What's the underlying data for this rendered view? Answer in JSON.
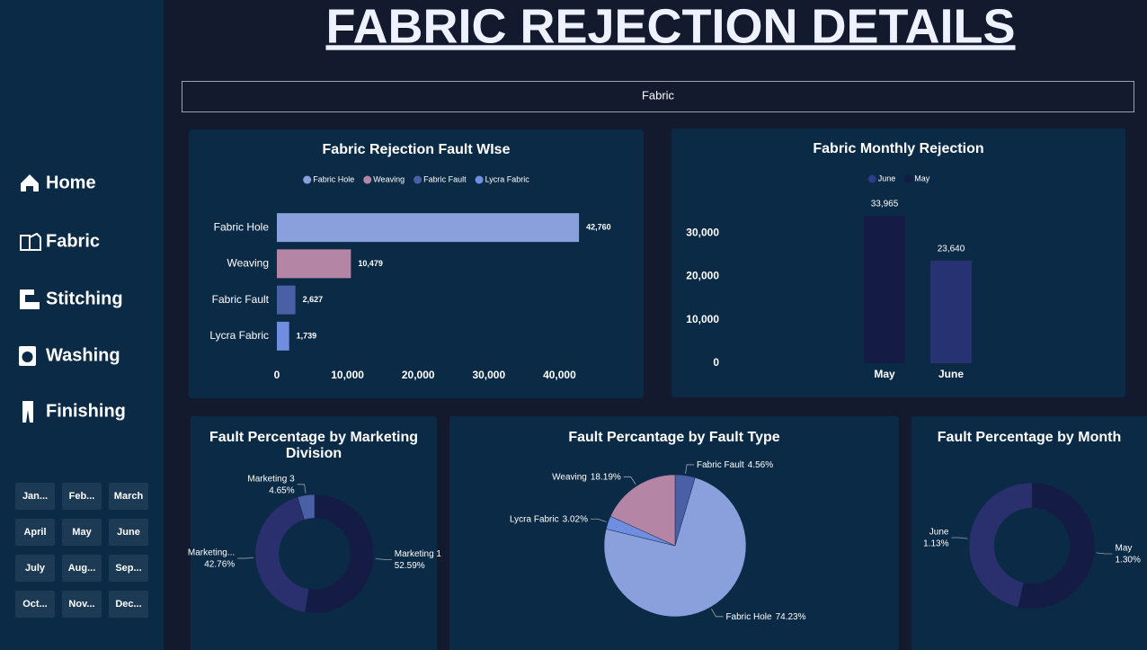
{
  "title": "FABRIC REJECTION DETAILS",
  "filter": "Fabric",
  "nav": [
    "Home",
    "Fabric",
    "Stitching",
    "Washing",
    "Finishing"
  ],
  "months": [
    "Jan...",
    "Feb...",
    "March",
    "April",
    "May",
    "June",
    "July",
    "Aug...",
    "Sep...",
    "Oct...",
    "Nov...",
    "Dec..."
  ],
  "chart_data": [
    {
      "type": "bar",
      "horizontal": true,
      "title": "Fabric Rejection Fault WIse",
      "categories": [
        "Fabric Hole",
        "Weaving",
        "Fabric Fault",
        "Lycra Fabric"
      ],
      "values": [
        42760,
        10479,
        2627,
        1739
      ],
      "value_labels": [
        "42,760",
        "10,479",
        "2,627",
        "1,739"
      ],
      "colors": [
        "#8aa0dc",
        "#b585a5",
        "#4b5fa6",
        "#6f8ee0"
      ],
      "legend": true,
      "xlim": [
        0,
        43000
      ],
      "xticks": [
        0,
        {
          "value": 10000,
          "label": "10,000"
        },
        {
          "value": 20000,
          "label": "20,000"
        },
        {
          "value": 30000,
          "label": "30,000"
        },
        {
          "value": 40000,
          "label": "40,000"
        }
      ]
    },
    {
      "type": "bar",
      "horizontal": false,
      "title": "Fabric Monthly Rejection",
      "categories": [
        "May",
        "June"
      ],
      "values": [
        33965,
        23640
      ],
      "value_labels": [
        "33,965",
        "23,640"
      ],
      "colors": [
        "#141c45",
        "#263272"
      ],
      "legend": [
        {
          "name": "June",
          "color": "#2e3a8a"
        },
        {
          "name": "May",
          "color": "#141c45"
        }
      ],
      "ylim": [
        0,
        35000
      ],
      "yticks": [
        0,
        {
          "value": 10000,
          "label": "10,000"
        },
        {
          "value": 20000,
          "label": "20,000"
        },
        {
          "value": 30000,
          "label": "30,000"
        }
      ]
    },
    {
      "type": "pie",
      "donut": true,
      "title": "Fault Percentage by Marketing Division",
      "categories": [
        "Marketing 1",
        "Marketing...",
        "Marketing 3"
      ],
      "values": [
        52.59,
        42.76,
        4.65
      ],
      "value_labels": [
        "52.59%",
        "42.76%",
        "4.65%"
      ],
      "colors": [
        "#141c45",
        "#2a2f6e",
        "#4b5fa6"
      ]
    },
    {
      "type": "pie",
      "donut": false,
      "title": "Fault Percantage by Fault Type",
      "categories": [
        "Fabric Fault",
        "Fabric Hole",
        "Lycra Fabric",
        "Weaving"
      ],
      "values": [
        4.56,
        74.23,
        3.02,
        18.19
      ],
      "value_labels": [
        "4.56%",
        "74.23%",
        "3.02%",
        "18.19%"
      ],
      "colors": [
        "#4b5fa6",
        "#8aa0dc",
        "#6f8ee0",
        "#b585a5"
      ]
    },
    {
      "type": "pie",
      "donut": true,
      "title": "Fault Percentage by Month",
      "categories": [
        "May",
        "June"
      ],
      "values": [
        1.3,
        1.13
      ],
      "value_labels": [
        "1.30%",
        "1.13%"
      ],
      "colors": [
        "#141c45",
        "#2a2f6e"
      ]
    }
  ]
}
